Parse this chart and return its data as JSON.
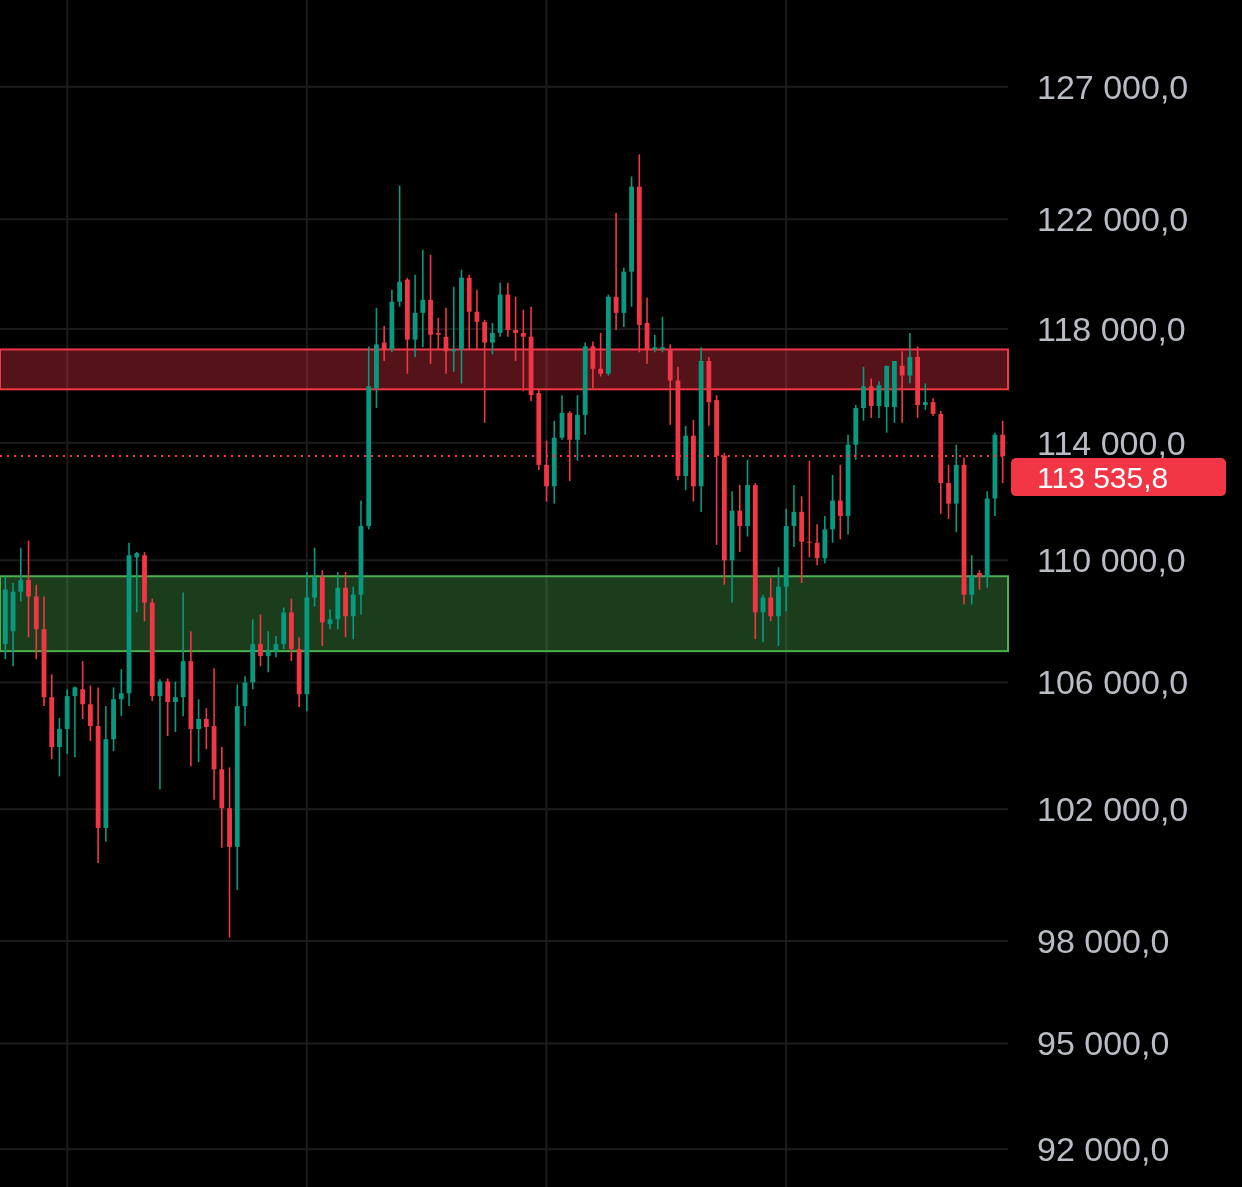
{
  "chart_data": {
    "type": "candlestick",
    "log": true,
    "grid": true,
    "categories": [
      null,
      null,
      null,
      null,
      null,
      null,
      null,
      null,
      null,
      null,
      null,
      null,
      null,
      null,
      null,
      null,
      null,
      null,
      null,
      null,
      null,
      null,
      null,
      null,
      null,
      null,
      null,
      null,
      null,
      null,
      null,
      null,
      null,
      null,
      null,
      null,
      null,
      null,
      null,
      null,
      null,
      null,
      null,
      null,
      null,
      null,
      null,
      null,
      null,
      null,
      null,
      null,
      null,
      null,
      null,
      null,
      null,
      null,
      null,
      null,
      null,
      null,
      null,
      null,
      null,
      null,
      null,
      null,
      null,
      null,
      null,
      null,
      null,
      null,
      null,
      null,
      null,
      null,
      null,
      null,
      null,
      null,
      null,
      null,
      null,
      null,
      null,
      null,
      null,
      null,
      null,
      null,
      null,
      null,
      null,
      null,
      null,
      null,
      null,
      null,
      null,
      null,
      null,
      null,
      null,
      null,
      null,
      null,
      null,
      null,
      null,
      null,
      null,
      null,
      null,
      null,
      null,
      null,
      null,
      null,
      null,
      null,
      null,
      null,
      null,
      null,
      null,
      null,
      null,
      null
    ],
    "ohlc": [
      [
        107240,
        109450,
        106750,
        109030
      ],
      [
        107660,
        109250,
        106520,
        108960
      ],
      [
        108960,
        110420,
        108635,
        109350
      ],
      [
        109350,
        110660,
        107465,
        108800
      ],
      [
        108800,
        109190,
        106750,
        107725
      ],
      [
        107725,
        108800,
        105240,
        105525
      ],
      [
        105525,
        106260,
        103560,
        103940
      ],
      [
        103940,
        104860,
        103020,
        104510
      ],
      [
        104510,
        105780,
        103720,
        105560
      ],
      [
        105560,
        105870,
        103620,
        105840
      ],
      [
        105780,
        106685,
        104830,
        105300
      ],
      [
        105300,
        105900,
        104130,
        104605
      ],
      [
        104605,
        105840,
        100350,
        101420
      ],
      [
        101420,
        105240,
        100995,
        104190
      ],
      [
        104190,
        105840,
        103810,
        105460
      ],
      [
        105460,
        106425,
        104920,
        105650
      ],
      [
        105650,
        110590,
        105240,
        110170
      ],
      [
        110100,
        110280,
        108280,
        110240
      ],
      [
        110170,
        110280,
        107985,
        108600
      ],
      [
        108600,
        108730,
        105400,
        105560
      ],
      [
        105560,
        106100,
        102610,
        106030
      ],
      [
        106030,
        106130,
        104290,
        105370
      ],
      [
        105370,
        106030,
        104415,
        105525
      ],
      [
        105525,
        108930,
        104920,
        106685
      ],
      [
        106685,
        107660,
        103340,
        104510
      ],
      [
        104510,
        105460,
        103465,
        104830
      ],
      [
        104830,
        105175,
        103875,
        104575
      ],
      [
        104605,
        106455,
        102290,
        103240
      ],
      [
        103240,
        103940,
        100810,
        102030
      ],
      [
        102030,
        103300,
        98100,
        100840
      ],
      [
        100840,
        105935,
        99530,
        105240
      ],
      [
        105240,
        106200,
        104605,
        106000
      ],
      [
        106000,
        108050,
        105780,
        107240
      ],
      [
        107240,
        108210,
        106520,
        106850
      ],
      [
        106850,
        107660,
        106330,
        107010
      ],
      [
        107010,
        107500,
        106815,
        107240
      ],
      [
        107240,
        108440,
        107075,
        108275
      ],
      [
        108275,
        108730,
        106685,
        107075
      ],
      [
        107075,
        107465,
        105210,
        105620
      ],
      [
        105620,
        109610,
        105080,
        108765
      ],
      [
        108765,
        110420,
        108470,
        109450
      ],
      [
        109450,
        109675,
        107175,
        107950
      ],
      [
        107890,
        108375,
        107725,
        108050
      ],
      [
        108050,
        109610,
        107725,
        109090
      ],
      [
        109090,
        109610,
        107465,
        108150
      ],
      [
        108150,
        109125,
        107400,
        108860
      ],
      [
        108860,
        112020,
        108210,
        111150
      ],
      [
        111150,
        117380,
        111040,
        115965
      ],
      [
        115900,
        118760,
        115205,
        117450
      ],
      [
        117515,
        118110,
        116860,
        117275
      ],
      [
        117275,
        119415,
        117170,
        118980
      ],
      [
        118980,
        123250,
        118800,
        119705
      ],
      [
        119780,
        119850,
        116410,
        117620
      ],
      [
        117620,
        119960,
        117000,
        118580
      ],
      [
        118580,
        120870,
        117345,
        119050
      ],
      [
        119050,
        120690,
        116760,
        117795
      ],
      [
        117860,
        118400,
        117275,
        117795
      ],
      [
        117725,
        118760,
        116410,
        117205
      ],
      [
        117205,
        119525,
        116480,
        117275
      ],
      [
        117275,
        120145,
        116070,
        119850
      ],
      [
        119850,
        119960,
        117275,
        118620
      ],
      [
        118620,
        119415,
        117275,
        118255
      ],
      [
        118255,
        118330,
        114690,
        117515
      ],
      [
        117515,
        118220,
        117100,
        117860
      ],
      [
        117860,
        119670,
        117725,
        119240
      ],
      [
        119240,
        119670,
        117725,
        117965
      ],
      [
        117965,
        119160,
        116860,
        117860
      ],
      [
        117860,
        118690,
        115790,
        117725
      ],
      [
        117725,
        118800,
        115445,
        115655
      ],
      [
        115725,
        115895,
        113060,
        113235
      ],
      [
        113235,
        114070,
        111980,
        112500
      ],
      [
        112500,
        114760,
        111910,
        114170
      ],
      [
        114170,
        115655,
        114100,
        115035
      ],
      [
        115035,
        115100,
        112680,
        114100
      ],
      [
        114100,
        115655,
        113375,
        114965
      ],
      [
        114965,
        117515,
        114275,
        117380
      ],
      [
        117380,
        117550,
        115895,
        116585
      ],
      [
        116585,
        117860,
        116310,
        116410
      ],
      [
        116410,
        119240,
        116345,
        119160
      ],
      [
        119160,
        122225,
        117965,
        118580
      ],
      [
        118580,
        120215,
        118070,
        120070
      ],
      [
        120070,
        123590,
        118800,
        123210
      ],
      [
        123210,
        124420,
        117170,
        118145
      ],
      [
        118220,
        119125,
        116760,
        117275
      ],
      [
        117275,
        117795,
        117170,
        117345
      ],
      [
        117275,
        118440,
        117170,
        117345
      ],
      [
        117275,
        117450,
        114620,
        116170
      ],
      [
        116170,
        116655,
        112710,
        112850
      ],
      [
        112850,
        114585,
        112365,
        114240
      ],
      [
        114240,
        114790,
        111980,
        112500
      ],
      [
        112500,
        117345,
        111630,
        116860
      ],
      [
        116860,
        117000,
        114585,
        115410
      ],
      [
        115480,
        115655,
        110520,
        113550
      ],
      [
        113550,
        113650,
        109190,
        110000
      ],
      [
        110000,
        112330,
        108600,
        111670
      ],
      [
        111670,
        112540,
        110280,
        111150
      ],
      [
        111150,
        113410,
        110800,
        112540
      ],
      [
        112540,
        112610,
        107400,
        108280
      ],
      [
        108280,
        108860,
        107300,
        108765
      ],
      [
        108765,
        109415,
        107985,
        108150
      ],
      [
        108150,
        109770,
        107175,
        109125
      ],
      [
        109125,
        111740,
        108310,
        111150
      ],
      [
        111150,
        112540,
        110450,
        111630
      ],
      [
        111630,
        112155,
        109250,
        110625
      ],
      [
        110625,
        113375,
        110100,
        110590
      ],
      [
        110590,
        111215,
        109840,
        110070
      ],
      [
        110070,
        111490,
        109900,
        111040
      ],
      [
        111040,
        112890,
        110590,
        112015
      ],
      [
        112015,
        113235,
        110700,
        111490
      ],
      [
        111490,
        114275,
        110870,
        113930
      ],
      [
        113930,
        115310,
        113410,
        115205
      ],
      [
        115205,
        116655,
        114760,
        115965
      ],
      [
        115965,
        116240,
        114860,
        115275
      ],
      [
        115275,
        116140,
        114860,
        116000
      ],
      [
        115240,
        116690,
        114345,
        116690
      ],
      [
        115240,
        116860,
        114690,
        116860
      ],
      [
        116690,
        117205,
        114690,
        116345
      ],
      [
        116345,
        117860,
        116070,
        117000
      ],
      [
        117000,
        117380,
        114860,
        115310
      ],
      [
        115310,
        116070,
        115140,
        115410
      ],
      [
        115410,
        115550,
        114930,
        115000
      ],
      [
        115000,
        115100,
        111560,
        112610
      ],
      [
        112610,
        113235,
        111390,
        111910
      ],
      [
        111910,
        113930,
        110940,
        113235
      ],
      [
        113235,
        113480,
        108540,
        108860
      ],
      [
        108860,
        110175,
        108540,
        109510
      ],
      [
        109575,
        109675,
        109025,
        109450
      ],
      [
        109450,
        112330,
        109090,
        112085
      ],
      [
        112085,
        114345,
        111490,
        114275
      ],
      [
        114275,
        114760,
        112610,
        113535.8
      ]
    ],
    "ylim": [
      90950,
      130390
    ],
    "yticks": [
      {
        "value": 127000,
        "label": "127 000,0"
      },
      {
        "value": 122000,
        "label": "122 000,0"
      },
      {
        "value": 118000,
        "label": "118 000,0"
      },
      {
        "value": 114000,
        "label": "114 000,0"
      },
      {
        "value": 110000,
        "label": "110 000,0"
      },
      {
        "value": 106000,
        "label": "106 000,0"
      },
      {
        "value": 102000,
        "label": "102 000,0"
      },
      {
        "value": 98000,
        "label": "98 000,0"
      },
      {
        "value": 95000,
        "label": "95 000,0"
      },
      {
        "value": 92000,
        "label": "92 000,0"
      }
    ],
    "bands": [
      {
        "axis": "y",
        "from": 115860,
        "to": 117270,
        "color": "#f23645"
      },
      {
        "axis": "y",
        "from": 107010,
        "to": 109470,
        "color": "#4caf50"
      }
    ],
    "ref_lines": [
      {
        "axis": "y",
        "value": 113535.8,
        "label": "113 535,8",
        "color": "#f23645",
        "line_style": "dotted"
      }
    ]
  }
}
